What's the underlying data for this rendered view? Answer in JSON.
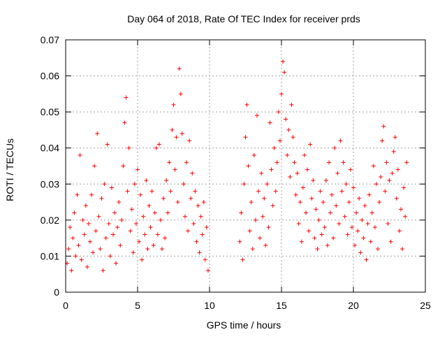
{
  "chart_data": {
    "type": "scatter",
    "title": "Day 064 of 2018, Rate Of TEC Index for receiver prds",
    "xlabel": "GPS time / hours",
    "ylabel": "ROTI / TECUs",
    "xlim": [
      0,
      25
    ],
    "ylim": [
      0,
      0.07
    ],
    "x_ticks": [
      0,
      5,
      10,
      15,
      20,
      25
    ],
    "y_ticks": [
      0,
      0.01,
      0.02,
      0.03,
      0.04,
      0.05,
      0.06,
      0.07
    ],
    "x_tick_labels": [
      "0",
      "5",
      "10",
      "15",
      "20",
      "25"
    ],
    "y_tick_labels": [
      "0",
      "0.01",
      "0.02",
      "0.03",
      "0.04",
      "0.05",
      "0.06",
      "0.07"
    ],
    "grid": true,
    "marker": "+",
    "marker_color": "#ff0000",
    "data_gap_hours": [
      10,
      12
    ],
    "series": [
      {
        "name": "ROTI",
        "points": [
          [
            0.1,
            0.008
          ],
          [
            0.2,
            0.012
          ],
          [
            0.3,
            0.018
          ],
          [
            0.4,
            0.006
          ],
          [
            0.5,
            0.015
          ],
          [
            0.6,
            0.022
          ],
          [
            0.7,
            0.01
          ],
          [
            0.8,
            0.027
          ],
          [
            0.9,
            0.013
          ],
          [
            1.0,
            0.038
          ],
          [
            1.1,
            0.009
          ],
          [
            1.2,
            0.02
          ],
          [
            1.3,
            0.016
          ],
          [
            1.4,
            0.024
          ],
          [
            1.5,
            0.007
          ],
          [
            1.6,
            0.019
          ],
          [
            1.7,
            0.014
          ],
          [
            1.8,
            0.027
          ],
          [
            1.9,
            0.011
          ],
          [
            2.0,
            0.035
          ],
          [
            2.1,
            0.017
          ],
          [
            2.2,
            0.044
          ],
          [
            2.3,
            0.021
          ],
          [
            2.4,
            0.012
          ],
          [
            2.5,
            0.026
          ],
          [
            2.6,
            0.006
          ],
          [
            2.7,
            0.03
          ],
          [
            2.8,
            0.015
          ],
          [
            2.9,
            0.041
          ],
          [
            3.0,
            0.019
          ],
          [
            3.1,
            0.01
          ],
          [
            3.2,
            0.029
          ],
          [
            3.3,
            0.016
          ],
          [
            3.4,
            0.022
          ],
          [
            3.5,
            0.008
          ],
          [
            3.6,
            0.018
          ],
          [
            3.7,
            0.025
          ],
          [
            3.8,
            0.013
          ],
          [
            3.9,
            0.02
          ],
          [
            4.0,
            0.035
          ],
          [
            4.1,
            0.047
          ],
          [
            4.2,
            0.054
          ],
          [
            4.3,
            0.028
          ],
          [
            4.4,
            0.04
          ],
          [
            4.5,
            0.017
          ],
          [
            4.6,
            0.023
          ],
          [
            4.7,
            0.011
          ],
          [
            4.8,
            0.03
          ],
          [
            4.9,
            0.019
          ],
          [
            5.0,
            0.034
          ],
          [
            5.1,
            0.014
          ],
          [
            5.2,
            0.027
          ],
          [
            5.3,
            0.009
          ],
          [
            5.4,
            0.021
          ],
          [
            5.5,
            0.016
          ],
          [
            5.6,
            0.031
          ],
          [
            5.7,
            0.012
          ],
          [
            5.8,
            0.024
          ],
          [
            5.9,
            0.018
          ],
          [
            6.0,
            0.028
          ],
          [
            6.1,
            0.013
          ],
          [
            6.2,
            0.022
          ],
          [
            6.3,
            0.04
          ],
          [
            6.4,
            0.016
          ],
          [
            6.5,
            0.041
          ],
          [
            6.6,
            0.02
          ],
          [
            6.7,
            0.012
          ],
          [
            6.8,
            0.026
          ],
          [
            6.9,
            0.015
          ],
          [
            7.0,
            0.031
          ],
          [
            7.1,
            0.022
          ],
          [
            7.2,
            0.036
          ],
          [
            7.3,
            0.028
          ],
          [
            7.4,
            0.045
          ],
          [
            7.5,
            0.052
          ],
          [
            7.6,
            0.034
          ],
          [
            7.7,
            0.043
          ],
          [
            7.8,
            0.025
          ],
          [
            7.9,
            0.062
          ],
          [
            8.0,
            0.055
          ],
          [
            8.1,
            0.044
          ],
          [
            8.2,
            0.03
          ],
          [
            8.3,
            0.021
          ],
          [
            8.4,
            0.036
          ],
          [
            8.5,
            0.017
          ],
          [
            8.6,
            0.042
          ],
          [
            8.7,
            0.026
          ],
          [
            8.8,
            0.033
          ],
          [
            8.9,
            0.019
          ],
          [
            9.0,
            0.028
          ],
          [
            9.1,
            0.014
          ],
          [
            9.2,
            0.024
          ],
          [
            9.3,
            0.011
          ],
          [
            9.4,
            0.021
          ],
          [
            9.5,
            0.016
          ],
          [
            9.6,
            0.025
          ],
          [
            9.7,
            0.009
          ],
          [
            9.8,
            0.018
          ],
          [
            9.9,
            0.006
          ],
          [
            12.1,
            0.014
          ],
          [
            12.2,
            0.022
          ],
          [
            12.3,
            0.009
          ],
          [
            12.4,
            0.03
          ],
          [
            12.5,
            0.043
          ],
          [
            12.6,
            0.052
          ],
          [
            12.7,
            0.035
          ],
          [
            12.8,
            0.017
          ],
          [
            12.9,
            0.025
          ],
          [
            13.0,
            0.012
          ],
          [
            13.1,
            0.038
          ],
          [
            13.2,
            0.02
          ],
          [
            13.3,
            0.049
          ],
          [
            13.4,
            0.028
          ],
          [
            13.5,
            0.015
          ],
          [
            13.6,
            0.033
          ],
          [
            13.7,
            0.021
          ],
          [
            13.8,
            0.026
          ],
          [
            13.9,
            0.013
          ],
          [
            14.0,
            0.03
          ],
          [
            14.1,
            0.018
          ],
          [
            14.2,
            0.047
          ],
          [
            14.3,
            0.034
          ],
          [
            14.4,
            0.024
          ],
          [
            14.5,
            0.04
          ],
          [
            14.6,
            0.028
          ],
          [
            14.7,
            0.036
          ],
          [
            14.8,
            0.05
          ],
          [
            14.9,
            0.042
          ],
          [
            15.0,
            0.055
          ],
          [
            15.1,
            0.064
          ],
          [
            15.2,
            0.061
          ],
          [
            15.3,
            0.048
          ],
          [
            15.4,
            0.038
          ],
          [
            15.5,
            0.045
          ],
          [
            15.6,
            0.032
          ],
          [
            15.7,
            0.052
          ],
          [
            15.8,
            0.043
          ],
          [
            15.9,
            0.036
          ],
          [
            16.0,
            0.027
          ],
          [
            16.1,
            0.033
          ],
          [
            16.2,
            0.019
          ],
          [
            16.3,
            0.025
          ],
          [
            16.4,
            0.014
          ],
          [
            16.5,
            0.029
          ],
          [
            16.6,
            0.038
          ],
          [
            16.7,
            0.022
          ],
          [
            16.8,
            0.034
          ],
          [
            16.9,
            0.017
          ],
          [
            17.0,
            0.041
          ],
          [
            17.1,
            0.026
          ],
          [
            17.2,
            0.031
          ],
          [
            17.3,
            0.015
          ],
          [
            17.4,
            0.023
          ],
          [
            17.5,
            0.012
          ],
          [
            17.6,
            0.02
          ],
          [
            17.7,
            0.028
          ],
          [
            17.8,
            0.016
          ],
          [
            17.9,
            0.025
          ],
          [
            18.0,
            0.018
          ],
          [
            18.1,
            0.031
          ],
          [
            18.2,
            0.013
          ],
          [
            18.3,
            0.036
          ],
          [
            18.4,
            0.022
          ],
          [
            18.5,
            0.027
          ],
          [
            18.6,
            0.015
          ],
          [
            18.7,
            0.04
          ],
          [
            18.8,
            0.024
          ],
          [
            18.9,
            0.033
          ],
          [
            19.0,
            0.019
          ],
          [
            19.1,
            0.042
          ],
          [
            19.2,
            0.028
          ],
          [
            19.3,
            0.036
          ],
          [
            19.4,
            0.021
          ],
          [
            19.5,
            0.03
          ],
          [
            19.6,
            0.016
          ],
          [
            19.7,
            0.025
          ],
          [
            19.8,
            0.034
          ],
          [
            19.9,
            0.018
          ],
          [
            20.0,
            0.029
          ],
          [
            20.1,
            0.013
          ],
          [
            20.2,
            0.022
          ],
          [
            20.3,
            0.017
          ],
          [
            20.4,
            0.026
          ],
          [
            20.5,
            0.011
          ],
          [
            20.6,
            0.02
          ],
          [
            20.7,
            0.015
          ],
          [
            20.8,
            0.024
          ],
          [
            20.9,
            0.009
          ],
          [
            21.0,
            0.019
          ],
          [
            21.1,
            0.027
          ],
          [
            21.2,
            0.014
          ],
          [
            21.3,
            0.022
          ],
          [
            21.4,
            0.035
          ],
          [
            21.5,
            0.018
          ],
          [
            21.6,
            0.03
          ],
          [
            21.7,
            0.012
          ],
          [
            21.8,
            0.025
          ],
          [
            21.9,
            0.032
          ],
          [
            22.0,
            0.042
          ],
          [
            22.1,
            0.046
          ],
          [
            22.2,
            0.028
          ],
          [
            22.3,
            0.036
          ],
          [
            22.4,
            0.019
          ],
          [
            22.5,
            0.031
          ],
          [
            22.6,
            0.014
          ],
          [
            22.7,
            0.033
          ],
          [
            22.8,
            0.039
          ],
          [
            22.9,
            0.043
          ],
          [
            23.0,
            0.026
          ],
          [
            23.1,
            0.034
          ],
          [
            23.2,
            0.017
          ],
          [
            23.3,
            0.023
          ],
          [
            23.4,
            0.012
          ],
          [
            23.5,
            0.029
          ],
          [
            23.6,
            0.021
          ],
          [
            23.7,
            0.036
          ]
        ]
      }
    ]
  }
}
